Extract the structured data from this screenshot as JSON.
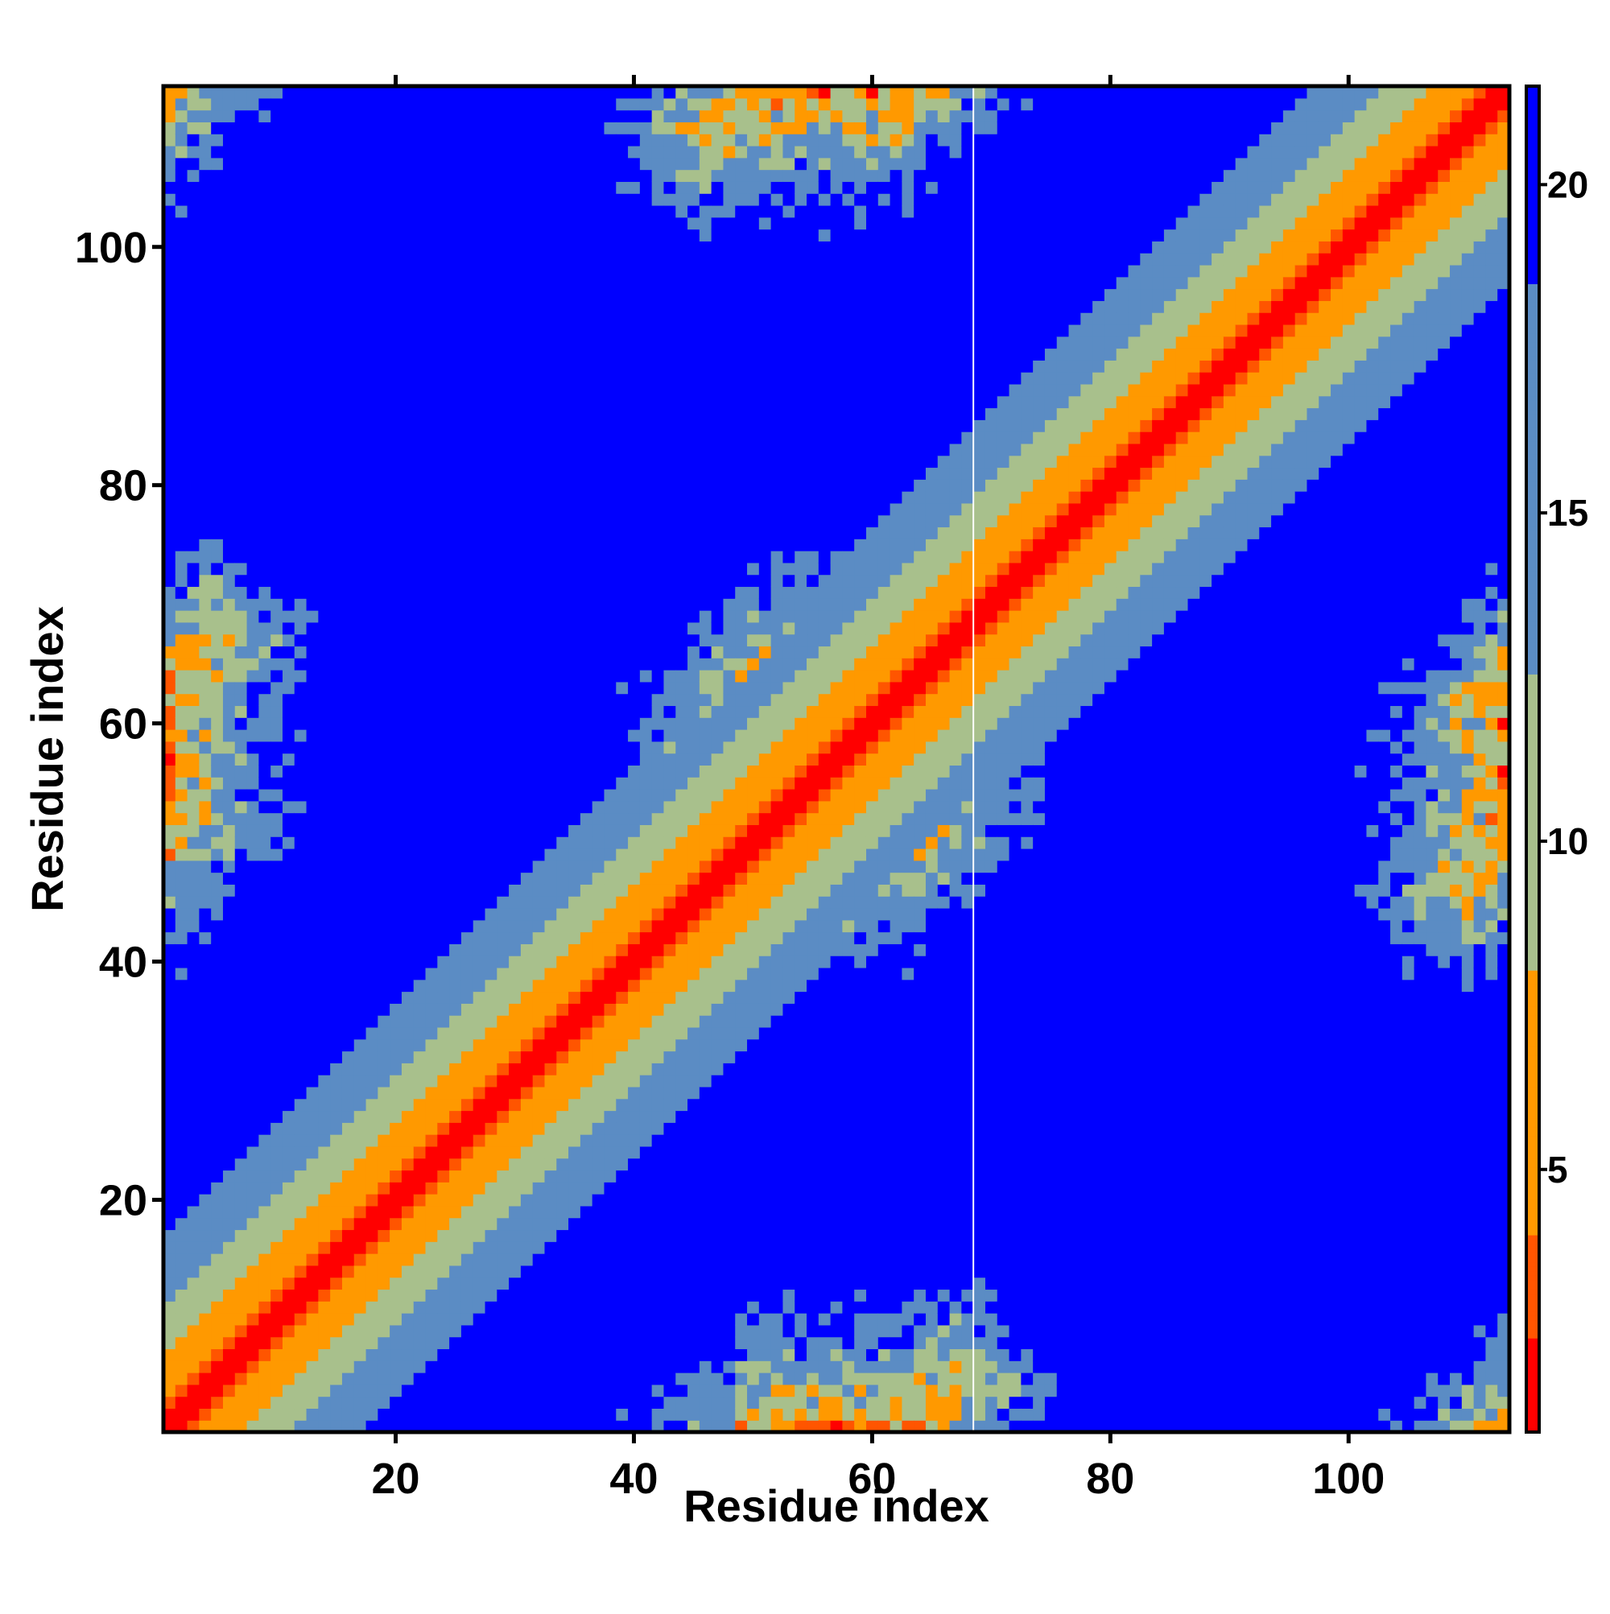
{
  "chart_data": {
    "type": "heatmap",
    "title": "",
    "xlabel": "Residue index",
    "ylabel": "Residue index",
    "n_residues": 113,
    "xlim": [
      1,
      113
    ],
    "ylim": [
      1,
      113
    ],
    "x_ticks": [
      20,
      40,
      60,
      80,
      100
    ],
    "y_ticks": [
      20,
      40,
      60,
      80,
      100
    ],
    "x_tick_labels": [
      "20",
      "40",
      "60",
      "80",
      "100"
    ],
    "y_tick_labels": [
      "20",
      "40",
      "60",
      "80",
      "100"
    ],
    "colorbar": {
      "ticks": [
        5,
        10,
        15,
        20
      ],
      "tick_labels": [
        "5",
        "10",
        "15",
        "20"
      ],
      "range": [
        1,
        21.5
      ],
      "placement": "right",
      "colors": [
        "#ff0000",
        "#ff5500",
        "#ff9900",
        "#a8c08c",
        "#5b8cc4",
        "#0000ff"
      ]
    },
    "gap_column_residue": 69,
    "matrix_encoding": "distance map (Å); diagonal ~0, off-diagonal contacts form two lobes; background capped at maximum"
  }
}
